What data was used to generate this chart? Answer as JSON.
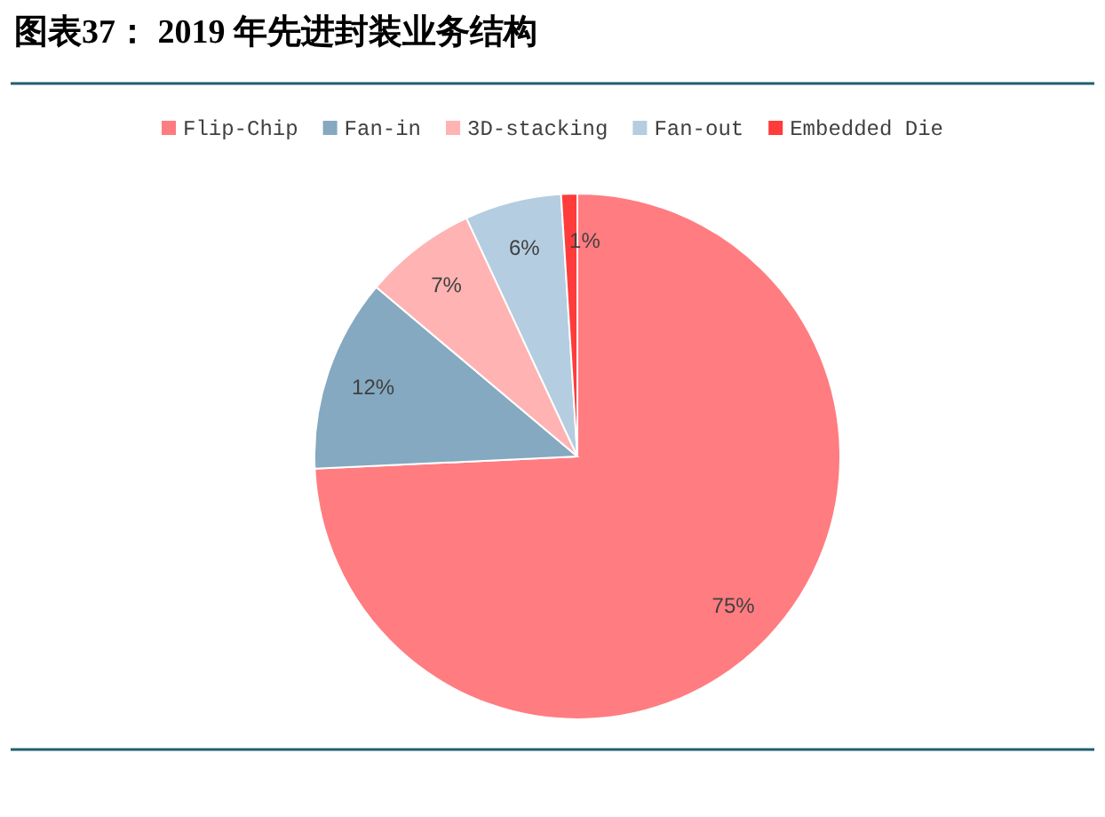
{
  "chart_data": {
    "type": "pie",
    "title": "图表37： 2019 年先进封装业务结构",
    "categories": [
      "Flip-Chip",
      "Fan-in",
      "3D-stacking",
      "Fan-out",
      "Embedded Die"
    ],
    "values": [
      75,
      12,
      7,
      6,
      1
    ],
    "colors": [
      "#ff7c80",
      "#84a9c0",
      "#ffb3b3",
      "#b4cde0",
      "#ff3b3b"
    ],
    "value_labels": [
      "75%",
      "12%",
      "7%",
      "6%",
      "1%"
    ],
    "legend": "top"
  }
}
